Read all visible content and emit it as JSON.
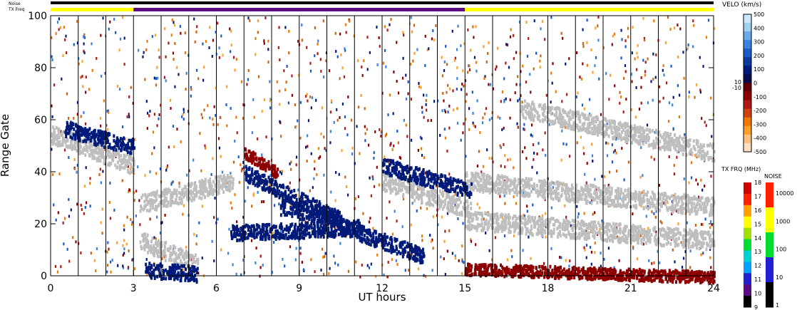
{
  "chart_data": [
    {
      "type": "heatmap",
      "title": "",
      "xlabel": "UT hours",
      "ylabel": "Range Gate",
      "xlim": [
        0,
        24
      ],
      "ylim": [
        0,
        100
      ],
      "x_ticks": [
        0,
        3,
        6,
        9,
        12,
        15,
        18,
        21,
        24
      ],
      "y_ticks": [
        0,
        20,
        40,
        60,
        80,
        100
      ],
      "grid": "vertical lines each hour",
      "colors": {
        "ground_scatter": "#bebebe",
        "toward": "#001a7a",
        "away": "#8c0000",
        "background": "#ffffff"
      },
      "features": [
        {
          "name": "ground_scatter",
          "x": [
            0,
            3
          ],
          "y": [
            55,
            43
          ]
        },
        {
          "name": "ground_scatter",
          "x": [
            3.2,
            6.6
          ],
          "y": [
            28,
            37
          ]
        },
        {
          "name": "ground_scatter",
          "x": [
            3.2,
            5.3
          ],
          "y": [
            14,
            5
          ]
        },
        {
          "name": "ground_scatter",
          "x": [
            12,
            15.2
          ],
          "y": [
            37,
            26
          ]
        },
        {
          "name": "ground_scatter",
          "x": [
            15,
            24
          ],
          "y": [
            37,
            27
          ]
        },
        {
          "name": "ground_scatter",
          "x": [
            15,
            24
          ],
          "y": [
            22,
            14
          ]
        },
        {
          "name": "ground_scatter",
          "x": [
            17,
            24
          ],
          "y": [
            65,
            48
          ]
        },
        {
          "name": "toward",
          "x": [
            7,
            10.5
          ],
          "y": [
            40,
            22
          ]
        },
        {
          "name": "toward",
          "x": [
            8.3,
            10.5
          ],
          "y": [
            27,
            22
          ]
        },
        {
          "name": "toward",
          "x": [
            6.5,
            11.2
          ],
          "y": [
            17,
            19
          ]
        },
        {
          "name": "toward",
          "x": [
            10.4,
            13.5
          ],
          "y": [
            20,
            8
          ]
        },
        {
          "name": "toward",
          "x": [
            12,
            15.2
          ],
          "y": [
            43,
            33
          ]
        },
        {
          "name": "toward",
          "x": [
            3.4,
            5.3
          ],
          "y": [
            3,
            1
          ]
        },
        {
          "name": "toward",
          "x": [
            0.5,
            3
          ],
          "y": [
            57,
            50
          ]
        },
        {
          "name": "away",
          "x": [
            15,
            24
          ],
          "y": [
            3,
            0
          ]
        },
        {
          "name": "away",
          "x": [
            7,
            8.2
          ],
          "y": [
            48,
            40
          ]
        }
      ]
    },
    {
      "type": "colorbar",
      "title": "VELO (km/s)",
      "range": [
        -500,
        500
      ],
      "ticks": [
        "500",
        "400",
        "300",
        "200",
        "100",
        "0",
        "-100",
        "-200",
        "-300",
        "-400",
        "-500"
      ],
      "side_labels": [
        "10",
        "-10"
      ],
      "colors": [
        "#fde0c3",
        "#ffbf80",
        "#ff9f28",
        "#f07800",
        "#d04010",
        "#b01818",
        "#8c0000",
        "#600000",
        "#0a0a50",
        "#001a7a",
        "#0a3a9c",
        "#1a5ac8",
        "#3a82e0",
        "#6aaae8",
        "#9ed0f0",
        "#cce8fa"
      ]
    },
    {
      "type": "colorbar",
      "title": "TX FRQ (MHz)",
      "range": [
        9,
        18
      ],
      "ticks": [
        "18",
        "17",
        "16",
        "15",
        "14",
        "13",
        "12",
        "11",
        "10",
        "9"
      ],
      "colors": [
        "#000000",
        "#5a0a82",
        "#2020d0",
        "#00a0ff",
        "#00d2d2",
        "#00dc32",
        "#a0e000",
        "#ffff00",
        "#ff9f00",
        "#ff2000",
        "#d00000"
      ]
    },
    {
      "type": "colorbar",
      "title": "NOISE",
      "ticks": [
        "10000",
        "1000",
        "100",
        "10",
        "1"
      ],
      "colors": [
        "#000000",
        "#2020d0",
        "#00dc32",
        "#ffff00",
        "#ff2000"
      ]
    },
    {
      "type": "timeline",
      "labels": [
        "Noise",
        "TX Freq"
      ],
      "noise_color": "#000000",
      "segments": [
        {
          "start": 0,
          "end": 3,
          "color": "#ffff00"
        },
        {
          "start": 3,
          "end": 15,
          "color": "#5a0a82"
        },
        {
          "start": 15,
          "end": 24,
          "color": "#ffff00"
        }
      ]
    }
  ]
}
